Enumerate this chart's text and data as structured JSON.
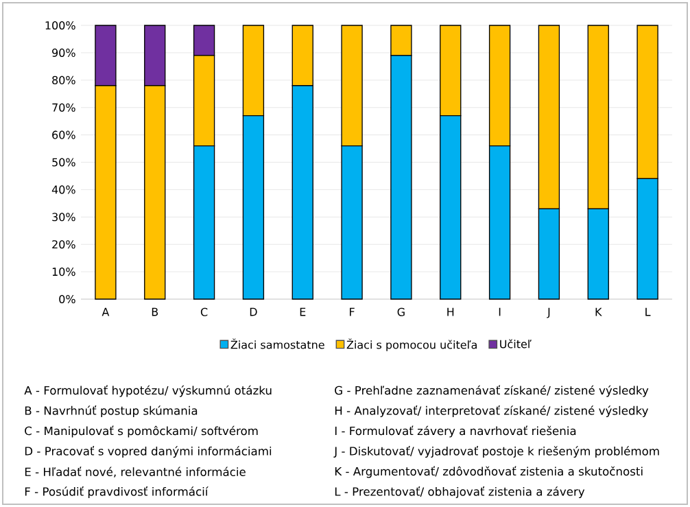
{
  "chart_data": {
    "type": "bar",
    "stacked": true,
    "categories": [
      "A",
      "B",
      "C",
      "D",
      "E",
      "F",
      "G",
      "H",
      "I",
      "J",
      "K",
      "L"
    ],
    "series": [
      {
        "name": "Žiaci samostatne",
        "color": "#00b0f0",
        "values": [
          0,
          0,
          56,
          67,
          78,
          56,
          89,
          67,
          56,
          33,
          33,
          44
        ]
      },
      {
        "name": "Žiaci s pomocou učiteľa",
        "color": "#ffc000",
        "values": [
          78,
          78,
          33,
          33,
          22,
          44,
          11,
          33,
          44,
          67,
          67,
          56
        ]
      },
      {
        "name": "Učiteľ",
        "color": "#7030a0",
        "values": [
          22,
          22,
          11,
          0,
          0,
          0,
          0,
          0,
          0,
          0,
          0,
          0
        ]
      }
    ],
    "ylim": [
      0,
      100
    ],
    "yticks": [
      {
        "value": 0,
        "label": "0%"
      },
      {
        "value": 10,
        "label": "10%"
      },
      {
        "value": 20,
        "label": "20%"
      },
      {
        "value": 30,
        "label": "30%"
      },
      {
        "value": 40,
        "label": "40%"
      },
      {
        "value": 50,
        "label": "50%"
      },
      {
        "value": 60,
        "label": "60%"
      },
      {
        "value": 70,
        "label": "70%"
      },
      {
        "value": 80,
        "label": "80%"
      },
      {
        "value": 90,
        "label": "90%"
      },
      {
        "value": 100,
        "label": "100%"
      }
    ],
    "grid": "y",
    "legend": "bottom",
    "annotations": [
      "A - Formulovať hypotézu/ výskumnú otázku",
      "B - Navrhnúť postup skúmania",
      "C - Manipulovať s pomôckami/ softvérom",
      "D - Pracovať s vopred danými informáciami",
      "E - Hľadať nové, relevantné informácie",
      "F - Posúdiť pravdivosť informácií",
      "G - Prehľadne zaznamenávať získané/ zistené výsledky",
      "H - Analyzovať/ interpretovať získané/ zistené výsledky",
      "I - Formulovať závery a navrhovať riešenia",
      "J - Diskutovať/ vyjadrovať postoje k riešeným problémom",
      "K - Argumentovať/ zdôvodňovať zistenia a skutočnosti",
      "L - Prezentovať/ obhajovať zistenia a závery"
    ]
  }
}
